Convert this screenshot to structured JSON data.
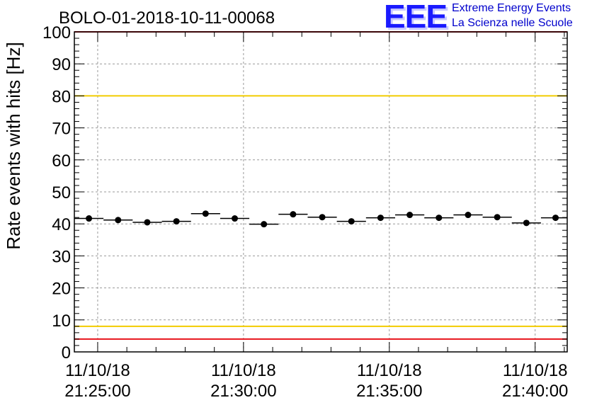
{
  "logo": {
    "mark": "EEE",
    "line1": "Extreme Energy Events",
    "line2": "La Scienza nelle Scuole"
  },
  "colors": {
    "red_threshold": "#e8141c",
    "yellow_threshold": "#f2cc00",
    "points": "#000000",
    "grid": "#999999"
  },
  "chart_data": {
    "type": "scatter",
    "title": "BOLO-01-2018-10-11-00068",
    "ylabel": "Rate events with hits [Hz]",
    "xlabel": "",
    "ylim": [
      0,
      100
    ],
    "yticks": [
      0,
      10,
      20,
      30,
      40,
      50,
      60,
      70,
      80,
      90,
      100
    ],
    "grid": true,
    "x_range": [
      "21:24:12",
      "21:41:06"
    ],
    "xticks": [
      {
        "t": "21:25:00",
        "date": "11/10/18",
        "time": "21:25:00"
      },
      {
        "t": "21:30:00",
        "date": "11/10/18",
        "time": "21:30:00"
      },
      {
        "t": "21:35:00",
        "date": "11/10/18",
        "time": "21:35:00"
      },
      {
        "t": "21:40:00",
        "date": "11/10/18",
        "time": "21:40:00"
      }
    ],
    "horizontal_lines": [
      {
        "y": 80,
        "color": "yellow"
      },
      {
        "y": 8,
        "color": "yellow"
      },
      {
        "y": 100,
        "color": "red"
      },
      {
        "y": 4,
        "color": "red"
      }
    ],
    "bin_width_s": 60,
    "series": [
      {
        "x": [
          "21:24:42",
          "21:25:42",
          "21:26:42",
          "21:27:42",
          "21:28:42",
          "21:29:42",
          "21:30:42",
          "21:31:42",
          "21:32:42",
          "21:33:42",
          "21:34:42",
          "21:35:42",
          "21:36:42",
          "21:37:42",
          "21:38:42",
          "21:39:42",
          "21:40:42"
        ],
        "y": [
          41.7,
          41.2,
          40.5,
          40.8,
          43.2,
          41.7,
          39.9,
          43.0,
          42.1,
          40.8,
          41.9,
          42.8,
          41.9,
          42.8,
          42.1,
          40.3,
          41.9
        ]
      }
    ]
  }
}
